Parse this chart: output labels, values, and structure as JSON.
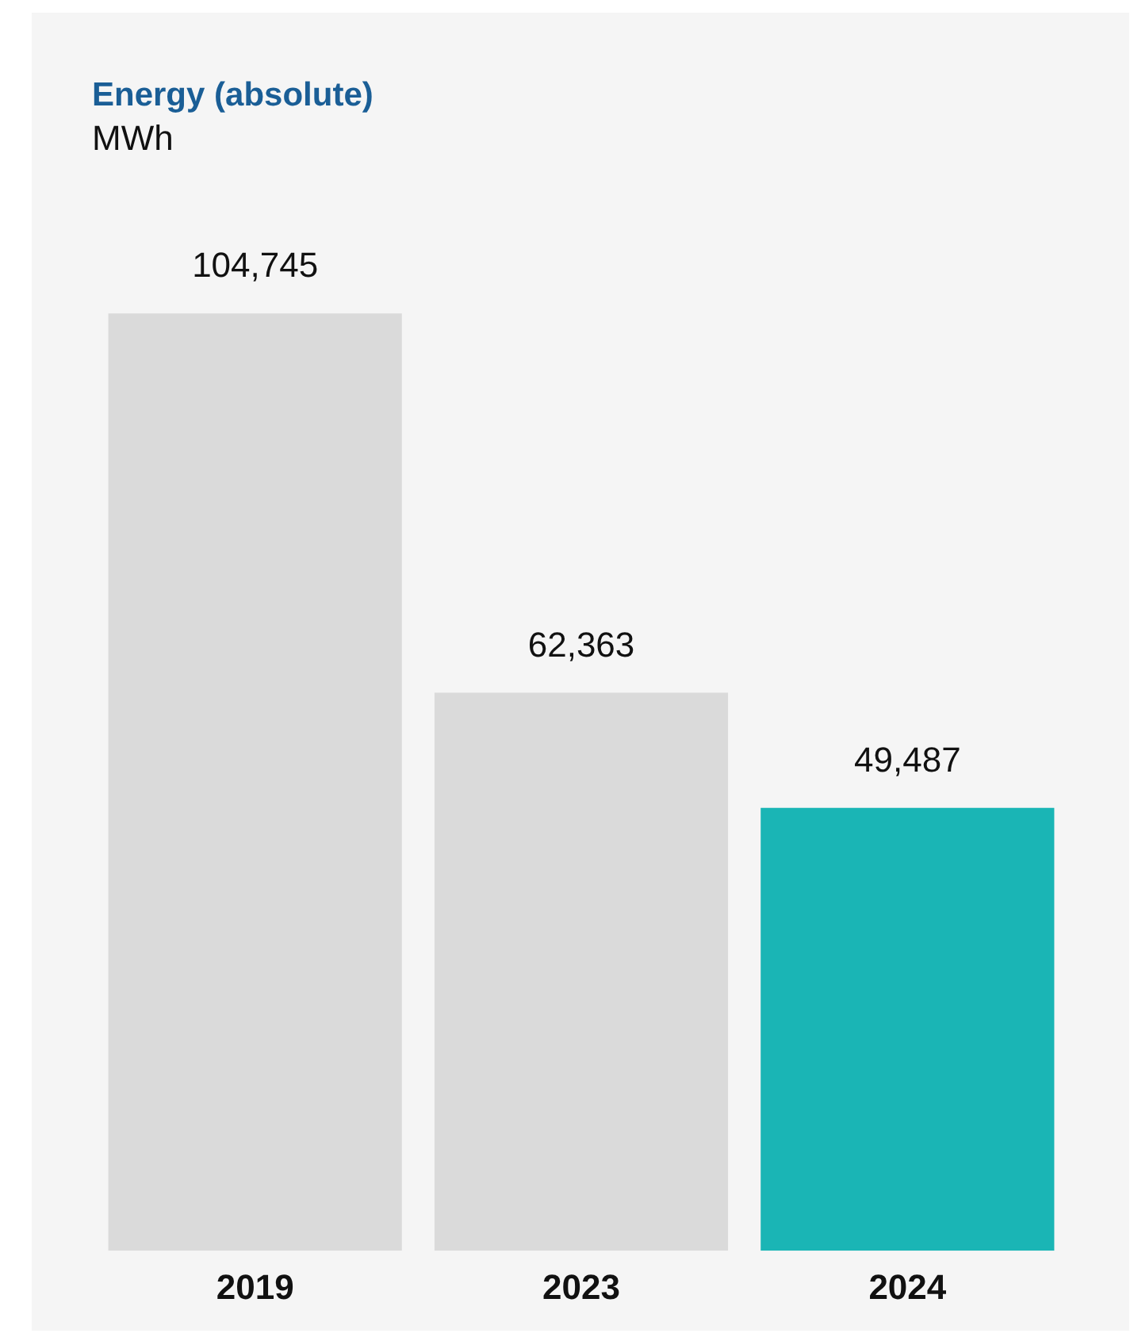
{
  "chart_data": {
    "type": "bar",
    "title": "Energy (absolute)",
    "subtitle": "MWh",
    "categories": [
      "2019",
      "2023",
      "2024"
    ],
    "values": [
      104745,
      62363,
      49487
    ],
    "value_labels": [
      "104,745",
      "62,363",
      "49,487"
    ],
    "colors": [
      "#dadada",
      "#dadada",
      "#1ab5b5"
    ],
    "tick_labels": "x",
    "grid": false,
    "legend": false
  }
}
